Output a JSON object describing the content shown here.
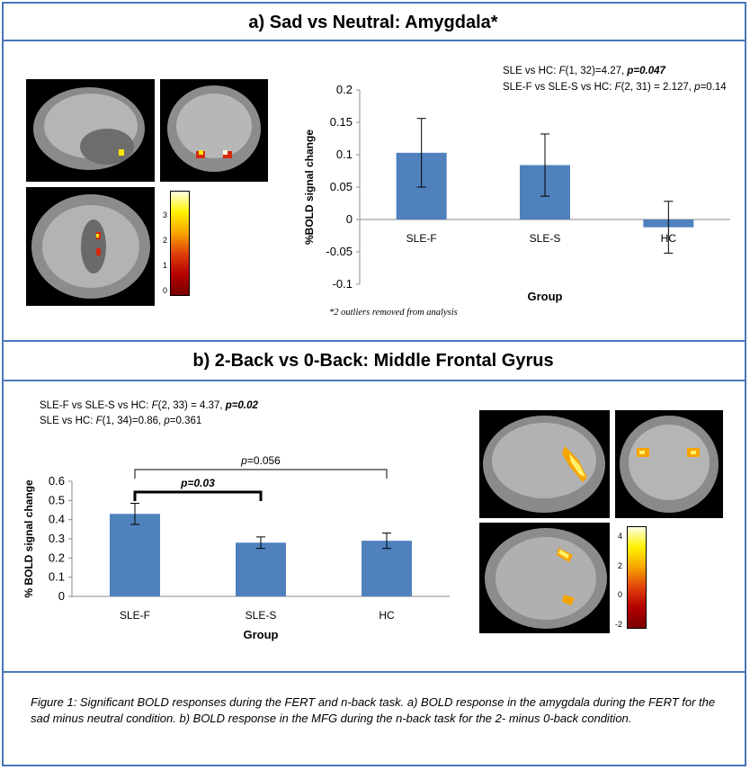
{
  "panel_a": {
    "title": "a) Sad vs Neutral: Amygdala*",
    "stat_line1_pre": "SLE vs HC: ",
    "stat_line1_f": "F",
    "stat_line1_mid": "(1, 32)=4.27, ",
    "stat_line1_p": "p=0.047",
    "stat_line2_pre": "SLE-F vs SLE-S vs HC: ",
    "stat_line2_f": "F",
    "stat_line2_mid": "(2, 31) = 2.127, ",
    "stat_line2_p": "p",
    "stat_line2_end": "=0.14",
    "footnote": "*2 outliers removed from analysis",
    "colorbar_ticks": [
      "3",
      "2",
      "1",
      "0"
    ]
  },
  "panel_b": {
    "title": "b) 2-Back vs 0-Back: Middle Frontal Gyrus",
    "stat_line1_pre": "SLE-F vs SLE-S vs HC: ",
    "stat_line1_f": "F",
    "stat_line1_mid": "(2, 33) = 4.37, ",
    "stat_line1_p": "p=0.02",
    "stat_line2_pre": "SLE vs HC: ",
    "stat_line2_f": "F",
    "stat_line2_mid": "(1, 34)=0.86, ",
    "stat_line2_p": "p",
    "stat_line2_end": "=0.361",
    "bracket1_label": "p=0.03",
    "bracket2_label_p": "p",
    "bracket2_label_val": "=0.056",
    "colorbar_ticks": [
      "4",
      "2",
      "0",
      "-2"
    ]
  },
  "caption": "Figure 1: Significant BOLD responses during the FERT and n-back task. a) BOLD response in the amygdala during the FERT for the sad minus neutral condition. b) BOLD response in the MFG during the n-back task for the 2- minus 0-back condition.",
  "colors": {
    "border": "#4a76b8",
    "bar": "#4f81bd"
  },
  "chart_data": [
    {
      "type": "bar",
      "categories": [
        "SLE-F",
        "SLE-S",
        "HC"
      ],
      "values": [
        0.103,
        0.084,
        -0.012
      ],
      "error": [
        0.053,
        0.048,
        0.04
      ],
      "ylabel": "%BOLD signal change",
      "xlabel": "Group",
      "ylim": [
        -0.1,
        0.2
      ],
      "yticks": [
        "0.2",
        "0.15",
        "0.1",
        "0.05",
        "0",
        "-0.05",
        "-0.1"
      ],
      "grid": false
    },
    {
      "type": "bar",
      "categories": [
        "SLE-F",
        "SLE-S",
        "HC"
      ],
      "values": [
        0.43,
        0.28,
        0.29
      ],
      "error": [
        0.055,
        0.03,
        0.04
      ],
      "ylabel": "% BOLD signal change",
      "xlabel": "Group",
      "ylim": [
        0,
        0.6
      ],
      "yticks": [
        "0.6",
        "0.5",
        "0.4",
        "0.3",
        "0.2",
        "0.1",
        "0"
      ],
      "grid": false
    }
  ]
}
